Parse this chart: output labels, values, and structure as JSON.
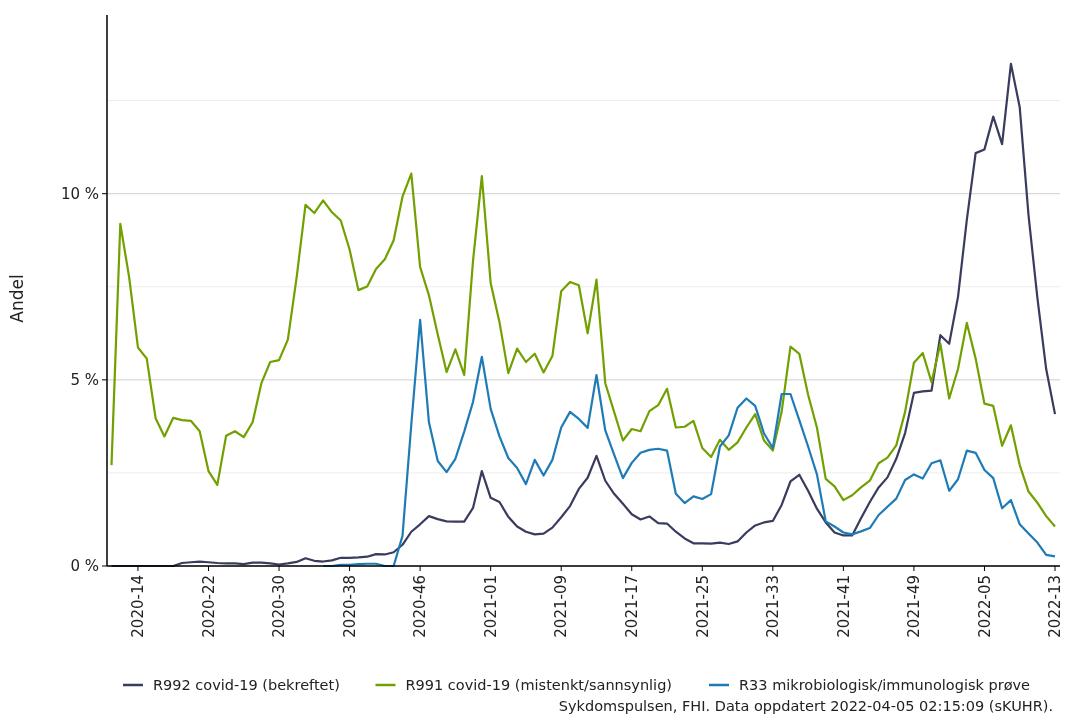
{
  "chart_data": {
    "type": "line",
    "ylabel": "Andel",
    "categories": [
      null,
      null,
      null,
      "2020-14",
      null,
      null,
      null,
      null,
      null,
      null,
      null,
      "2020-22",
      null,
      null,
      null,
      null,
      null,
      null,
      null,
      "2020-30",
      null,
      null,
      null,
      null,
      null,
      null,
      null,
      "2020-38",
      null,
      null,
      null,
      null,
      null,
      null,
      null,
      "2020-46",
      null,
      null,
      null,
      null,
      null,
      null,
      null,
      "2021-01",
      null,
      null,
      null,
      null,
      null,
      null,
      null,
      "2021-09",
      null,
      null,
      null,
      null,
      null,
      null,
      null,
      "2021-17",
      null,
      null,
      null,
      null,
      null,
      null,
      null,
      "2021-25",
      null,
      null,
      null,
      null,
      null,
      null,
      null,
      "2021-33",
      null,
      null,
      null,
      null,
      null,
      null,
      null,
      "2021-41",
      null,
      null,
      null,
      null,
      null,
      null,
      null,
      "2021-49",
      null,
      null,
      null,
      null,
      null,
      null,
      null,
      "2022-05",
      null,
      null,
      null,
      null,
      null,
      null,
      null,
      "2022-13"
    ],
    "series": [
      {
        "name": "R992 covid-19 (bekreftet)",
        "color": "#393b5f",
        "values": [
          0,
          0,
          0,
          0,
          0,
          0,
          0,
          0,
          0.08,
          0.1,
          0.12,
          0.1,
          0.08,
          0.07,
          0.07,
          0.05,
          0.09,
          0.09,
          0.07,
          0.04,
          0.07,
          0.11,
          0.21,
          0.14,
          0.12,
          0.15,
          0.22,
          0.22,
          0.23,
          0.25,
          0.32,
          0.31,
          0.37,
          0.57,
          0.92,
          1.12,
          1.34,
          1.26,
          1.2,
          1.19,
          1.19,
          1.56,
          2.55,
          1.83,
          1.72,
          1.32,
          1.06,
          0.92,
          0.85,
          0.87,
          1.03,
          1.31,
          1.61,
          2.07,
          2.37,
          2.96,
          2.29,
          1.94,
          1.67,
          1.39,
          1.25,
          1.33,
          1.15,
          1.14,
          0.92,
          0.74,
          0.61,
          0.61,
          0.6,
          0.63,
          0.59,
          0.66,
          0.9,
          1.09,
          1.17,
          1.21,
          1.64,
          2.27,
          2.45,
          2.02,
          1.54,
          1.17,
          0.9,
          0.82,
          0.82,
          1.28,
          1.72,
          2.11,
          2.38,
          2.88,
          3.57,
          4.65,
          4.69,
          4.71,
          6.2,
          5.97,
          7.23,
          9.3,
          11.09,
          11.19,
          12.07,
          11.33,
          13.49,
          12.32,
          9.41,
          7.21,
          5.29,
          4.08
        ]
      },
      {
        "name": "R991 covid-19 (mistenkt/sannsynlig)",
        "color": "#72a000",
        "values": [
          2.71,
          9.19,
          7.76,
          5.87,
          5.57,
          3.97,
          3.48,
          3.98,
          3.92,
          3.9,
          3.62,
          2.55,
          2.18,
          3.5,
          3.62,
          3.46,
          3.86,
          4.91,
          5.48,
          5.53,
          6.08,
          7.76,
          9.7,
          9.48,
          9.82,
          9.5,
          9.28,
          8.5,
          7.41,
          7.51,
          7.98,
          8.24,
          8.75,
          9.92,
          10.54,
          8.03,
          7.27,
          6.22,
          5.21,
          5.82,
          5.13,
          8.2,
          10.47,
          7.6,
          6.55,
          5.18,
          5.84,
          5.48,
          5.7,
          5.2,
          5.64,
          7.38,
          7.63,
          7.54,
          6.25,
          7.69,
          4.91,
          4.14,
          3.37,
          3.68,
          3.62,
          4.16,
          4.32,
          4.76,
          3.72,
          3.74,
          3.9,
          3.17,
          2.93,
          3.39,
          3.12,
          3.32,
          3.72,
          4.08,
          3.37,
          3.1,
          4.14,
          5.89,
          5.7,
          4.6,
          3.72,
          2.34,
          2.14,
          1.77,
          1.9,
          2.11,
          2.29,
          2.76,
          2.91,
          3.24,
          4.14,
          5.46,
          5.72,
          4.94,
          5.97,
          4.5,
          5.29,
          6.53,
          5.57,
          4.36,
          4.3,
          3.23,
          3.78,
          2.71,
          2.0,
          1.7,
          1.34,
          1.06
        ]
      },
      {
        "name": "R33 mikrobiologisk/immunologisk prøve",
        "color": "#1f7bb6",
        "values": [
          null,
          null,
          null,
          null,
          null,
          null,
          null,
          null,
          null,
          null,
          null,
          null,
          null,
          null,
          null,
          null,
          null,
          null,
          null,
          null,
          null,
          null,
          null,
          null,
          0,
          0,
          0.03,
          0.03,
          0.05,
          0.06,
          0.06,
          0,
          0,
          0.81,
          3.8,
          6.61,
          3.86,
          2.82,
          2.52,
          2.88,
          3.61,
          4.41,
          5.62,
          4.22,
          3.48,
          2.9,
          2.63,
          2.2,
          2.85,
          2.43,
          2.85,
          3.72,
          4.14,
          3.95,
          3.71,
          5.13,
          3.64,
          2.99,
          2.36,
          2.77,
          3.04,
          3.12,
          3.15,
          3.1,
          1.94,
          1.69,
          1.87,
          1.8,
          1.93,
          3.21,
          3.51,
          4.25,
          4.5,
          4.3,
          3.56,
          3.17,
          4.62,
          4.62,
          3.92,
          3.21,
          2.46,
          1.2,
          1.06,
          0.9,
          0.85,
          0.93,
          1.02,
          1.37,
          1.59,
          1.81,
          2.31,
          2.46,
          2.35,
          2.76,
          2.84,
          2.02,
          2.33,
          3.1,
          3.04,
          2.58,
          2.36,
          1.55,
          1.77,
          1.12,
          0.87,
          0.63,
          0.3,
          0.26
        ]
      }
    ],
    "ylim": [
      0,
      14.8
    ],
    "yticks": [
      {
        "value": 0,
        "label": "0 %"
      },
      {
        "value": 2.5,
        "label": null
      },
      {
        "value": 5,
        "label": "5 %"
      },
      {
        "value": 7.5,
        "label": null
      },
      {
        "value": 10,
        "label": "10 %"
      },
      {
        "value": 12.5,
        "label": null
      }
    ],
    "grid": "y",
    "legend": "bottom",
    "annotations": [
      "Sykdomspulsen, FHI. Data oppdatert 2022-04-05 02:15:09 (sKUHR)."
    ]
  }
}
